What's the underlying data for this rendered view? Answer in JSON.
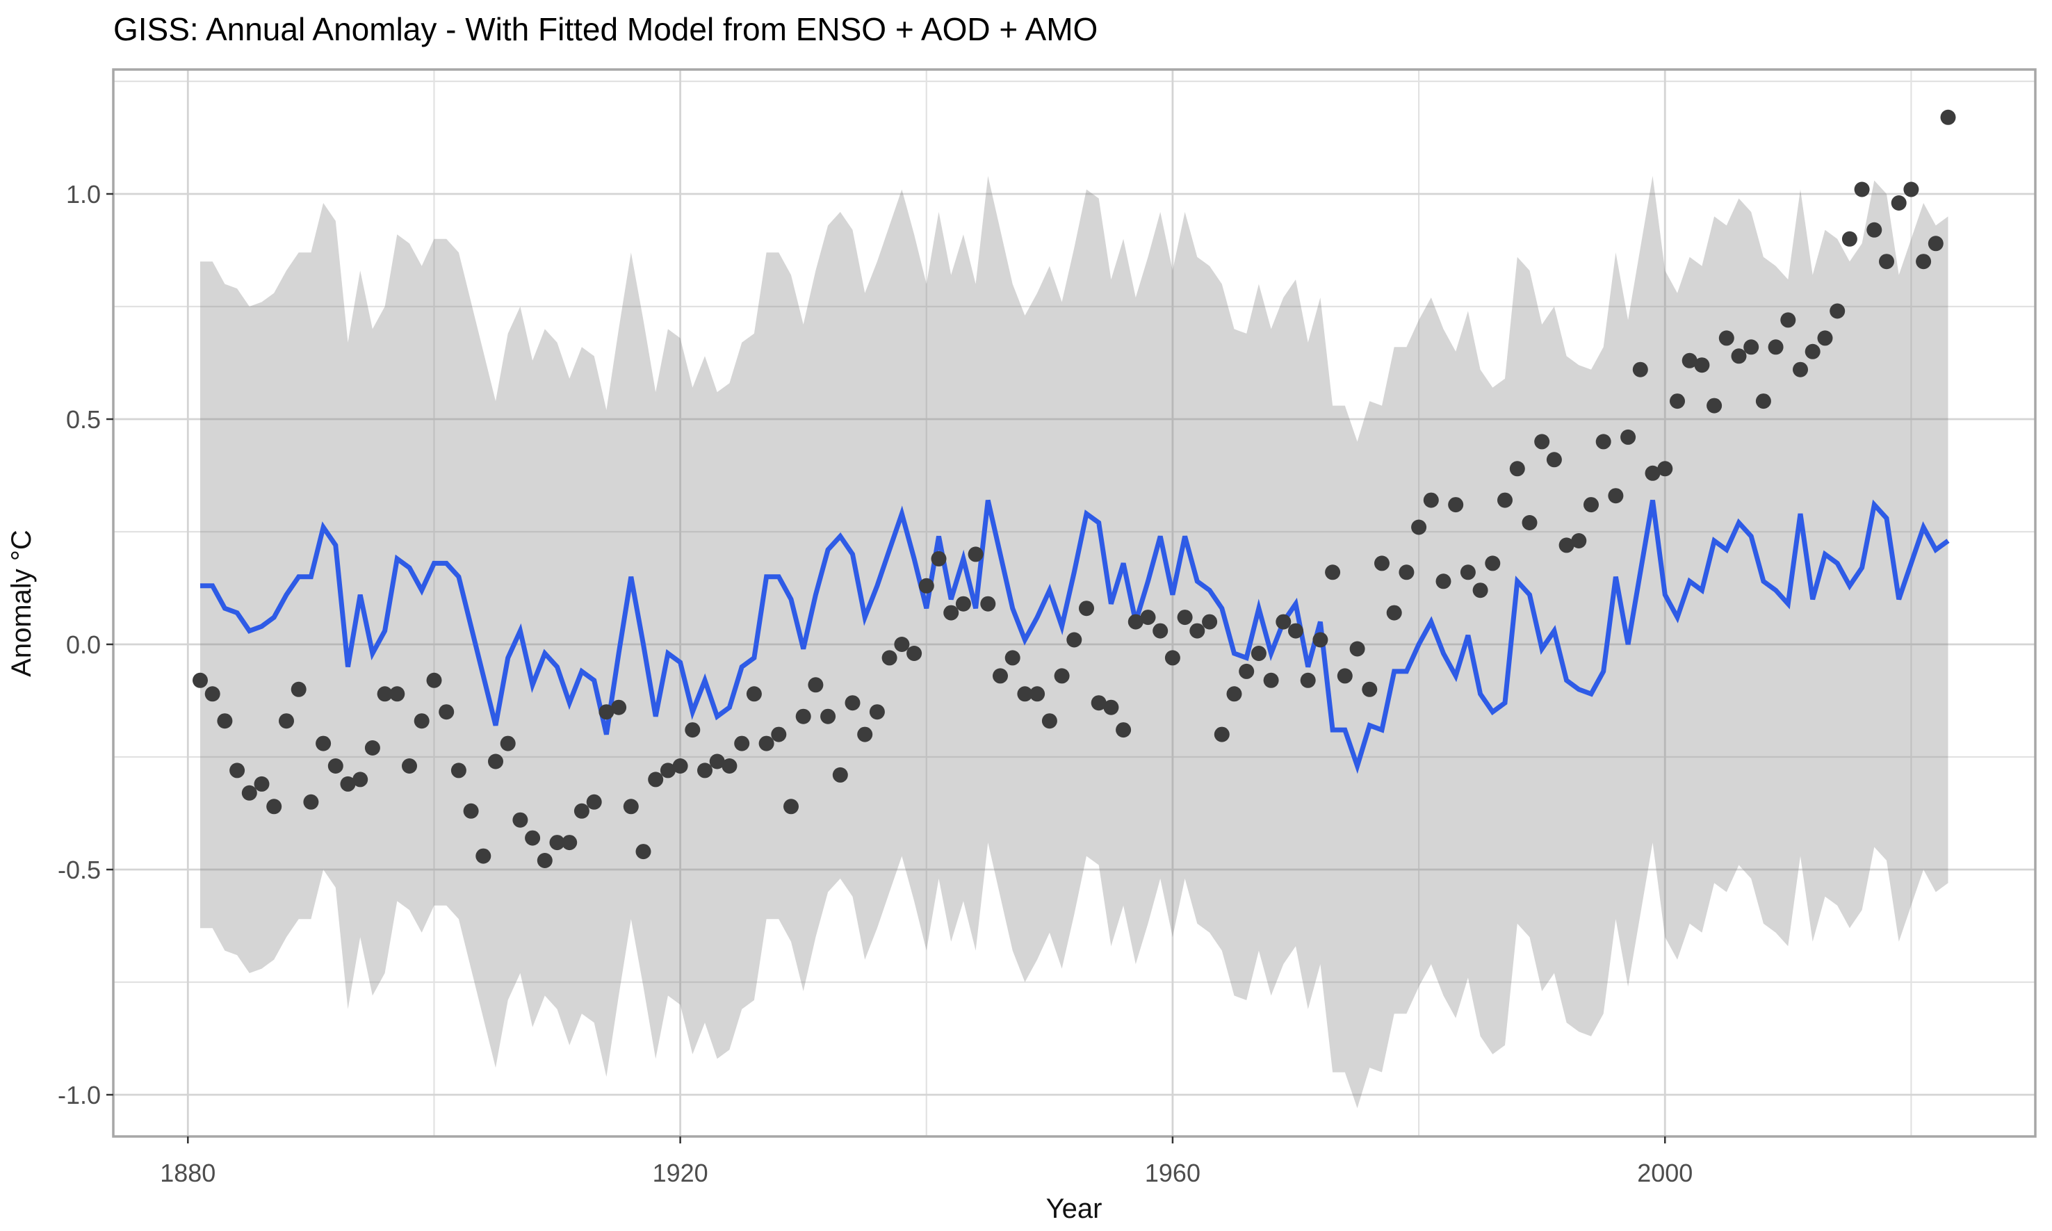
{
  "title": "GISS: Annual Anomlay - With Fitted Model from ENSO + AOD + AMO",
  "axes": {
    "x_label": "Year",
    "y_label": "Anomaly °C",
    "x_tick_labels": [
      "1880",
      "1920",
      "1960",
      "2000"
    ],
    "x_tick_values": [
      1880,
      1920,
      1960,
      2000
    ],
    "x_minor_values": [
      1900,
      1940,
      1980,
      2020
    ],
    "y_tick_labels": [
      "-1.0",
      "-0.5",
      "0.0",
      "0.5",
      "1.0"
    ],
    "y_tick_values": [
      -1.0,
      -0.5,
      0.0,
      0.5,
      1.0
    ],
    "y_minor_values": [
      -0.75,
      -0.25,
      0.25,
      0.75,
      1.25
    ]
  },
  "colors": {
    "fitted_line": "#2e5be6",
    "observed_point": "#3c3c3c",
    "ribbon_fill_rgba": "rgba(127,127,127,0.33)",
    "grid_major": "#d4d4d4",
    "grid_minor": "#e2e2e2",
    "panel_border": "#a7a7a7",
    "tick_mark": "#333333",
    "background": "#ffffff"
  },
  "chart_data": {
    "type": "line",
    "subtype": "scatter+line+ribbon",
    "title": "GISS: Annual Anomlay - With Fitted Model from ENSO + AOD + AMO",
    "xlabel": "Year",
    "ylabel": "Anomaly °C",
    "x_start": 1881,
    "x_end": 2023,
    "xlim": [
      1874,
      2030
    ],
    "ylim": [
      -1.09,
      1.28
    ],
    "grid": "major+minor",
    "legend": "none",
    "series": [
      {
        "name": "observed_annual_anomaly",
        "style": "points",
        "values": [
          -0.08,
          -0.11,
          -0.17,
          -0.28,
          -0.33,
          -0.31,
          -0.36,
          -0.17,
          -0.1,
          -0.35,
          -0.22,
          -0.27,
          -0.31,
          -0.3,
          -0.23,
          -0.11,
          -0.11,
          -0.27,
          -0.17,
          -0.08,
          -0.15,
          -0.28,
          -0.37,
          -0.47,
          -0.26,
          -0.22,
          -0.39,
          -0.43,
          -0.48,
          -0.44,
          -0.44,
          -0.37,
          -0.35,
          -0.15,
          -0.14,
          -0.36,
          -0.46,
          -0.3,
          -0.28,
          -0.27,
          -0.19,
          -0.28,
          -0.26,
          -0.27,
          -0.22,
          -0.11,
          -0.22,
          -0.2,
          -0.36,
          -0.16,
          -0.09,
          -0.16,
          -0.29,
          -0.13,
          -0.2,
          -0.15,
          -0.03,
          0.0,
          -0.02,
          0.13,
          0.19,
          0.07,
          0.09,
          0.2,
          0.09,
          -0.07,
          -0.03,
          -0.11,
          -0.11,
          -0.17,
          -0.07,
          0.01,
          0.08,
          -0.13,
          -0.14,
          -0.19,
          0.05,
          0.06,
          0.03,
          -0.03,
          0.06,
          0.03,
          0.05,
          -0.2,
          -0.11,
          -0.06,
          -0.02,
          -0.08,
          0.05,
          0.03,
          -0.08,
          0.01,
          0.16,
          -0.07,
          -0.01,
          -0.1,
          0.18,
          0.07,
          0.16,
          0.26,
          0.32,
          0.14,
          0.31,
          0.16,
          0.12,
          0.18,
          0.32,
          0.39,
          0.27,
          0.45,
          0.41,
          0.22,
          0.23,
          0.31,
          0.45,
          0.33,
          0.46,
          0.61,
          0.38,
          0.39,
          0.54,
          0.63,
          0.62,
          0.53,
          0.68,
          0.64,
          0.66,
          0.54,
          0.66,
          0.72,
          0.61,
          0.65,
          0.68,
          0.74,
          0.9,
          1.01,
          0.92,
          0.85,
          0.98,
          1.01,
          0.85,
          0.89,
          1.17
        ]
      },
      {
        "name": "fitted_model_enso_aod_amo",
        "style": "line",
        "values": [
          0.13,
          0.13,
          0.08,
          0.07,
          0.03,
          0.04,
          0.06,
          0.11,
          0.15,
          0.15,
          0.26,
          0.22,
          -0.05,
          0.11,
          -0.02,
          0.03,
          0.19,
          0.17,
          0.12,
          0.18,
          0.18,
          0.15,
          0.04,
          -0.07,
          -0.18,
          -0.03,
          0.03,
          -0.09,
          -0.02,
          -0.05,
          -0.13,
          -0.06,
          -0.08,
          -0.2,
          -0.02,
          0.15,
          0.0,
          -0.16,
          -0.02,
          -0.04,
          -0.15,
          -0.08,
          -0.16,
          -0.14,
          -0.05,
          -0.03,
          0.15,
          0.15,
          0.1,
          -0.01,
          0.11,
          0.21,
          0.24,
          0.2,
          0.06,
          0.13,
          0.21,
          0.29,
          0.19,
          0.08,
          0.24,
          0.1,
          0.19,
          0.08,
          0.32,
          0.2,
          0.08,
          0.01,
          0.06,
          0.12,
          0.04,
          0.16,
          0.29,
          0.27,
          0.09,
          0.18,
          0.05,
          0.14,
          0.24,
          0.11,
          0.24,
          0.14,
          0.12,
          0.08,
          -0.02,
          -0.03,
          0.08,
          -0.02,
          0.05,
          0.09,
          -0.05,
          0.05,
          -0.19,
          -0.19,
          -0.27,
          -0.18,
          -0.19,
          -0.06,
          -0.06,
          0.0,
          0.05,
          -0.02,
          -0.07,
          0.02,
          -0.11,
          -0.15,
          -0.13,
          0.14,
          0.11,
          -0.01,
          0.03,
          -0.08,
          -0.1,
          -0.11,
          -0.06,
          0.15,
          0.0,
          0.16,
          0.32,
          0.11,
          0.06,
          0.14,
          0.12,
          0.23,
          0.21,
          0.27,
          0.24,
          0.14,
          0.12,
          0.09,
          0.29,
          0.1,
          0.2,
          0.18,
          0.13,
          0.17,
          0.31,
          0.28,
          0.1,
          0.18,
          0.26,
          0.21,
          0.23
        ]
      },
      {
        "name": "prediction_interval_ribbon",
        "style": "ribbon",
        "upper_offset": 0.72,
        "lower_offset": -0.76,
        "note": "ribbon edges = fitted_model values plus offsets"
      }
    ]
  }
}
